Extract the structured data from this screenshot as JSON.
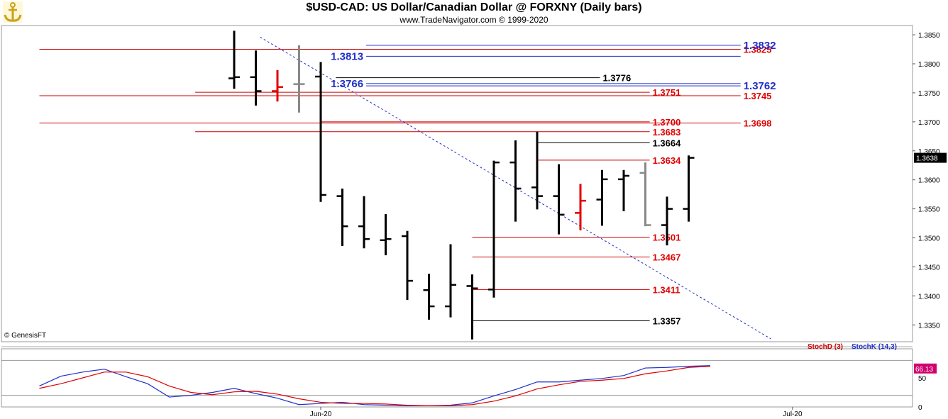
{
  "header": {
    "title": "$USD-CAD:  US Dollar/Canadian Dollar @ FORXNY  (Daily bars)",
    "subtitle": "www.TradeNavigator.com © 1999-2020",
    "copyright": "© GenesisFT"
  },
  "colors": {
    "up_bar": "#000000",
    "neutral_bar": "#888888",
    "down_bar": "#e00000",
    "resistance_line": "#cc0000",
    "trendline": "#1f2fc8",
    "stoch_d": "#cc0000",
    "stoch_k": "#1f2fc8",
    "label_red": "#e00000",
    "label_blue": "#1f2fc8"
  },
  "chart_data": [
    {
      "type": "ohlc",
      "title": "$USD-CAD:  US Dollar/Canadian Dollar @ FORXNY  (Daily bars)",
      "y_ticks": [
        "1.3350",
        "1.3400",
        "1.3450",
        "1.3500",
        "1.3550",
        "1.3600",
        "1.3650",
        "1.3700",
        "1.3750",
        "1.3800",
        "1.3850"
      ],
      "ylim": [
        1.3321,
        1.3866
      ],
      "x_ticks": [
        {
          "label": "Jun-20",
          "index": 4
        },
        {
          "label": "Jul-20",
          "index": 25.8
        }
      ],
      "last_price": "1.3638",
      "bars": [
        {
          "o": 1.3775,
          "h": 1.3857,
          "l": 1.3757,
          "c": 1.3777,
          "color": "black"
        },
        {
          "o": 1.3777,
          "h": 1.3823,
          "l": 1.3728,
          "c": 1.3753,
          "color": "black"
        },
        {
          "o": 1.3753,
          "h": 1.3789,
          "l": 1.3735,
          "c": 1.376,
          "color": "red"
        },
        {
          "o": 1.3765,
          "h": 1.3832,
          "l": 1.3716,
          "c": 1.3765,
          "color": "gray"
        },
        {
          "o": 1.3778,
          "h": 1.3803,
          "l": 1.3562,
          "c": 1.3574,
          "color": "black"
        },
        {
          "o": 1.3572,
          "h": 1.3585,
          "l": 1.3486,
          "c": 1.352,
          "color": "black"
        },
        {
          "o": 1.352,
          "h": 1.3572,
          "l": 1.3482,
          "c": 1.3498,
          "color": "black"
        },
        {
          "o": 1.3496,
          "h": 1.3541,
          "l": 1.347,
          "c": 1.3498,
          "color": "black"
        },
        {
          "o": 1.3503,
          "h": 1.3512,
          "l": 1.3393,
          "c": 1.3426,
          "color": "black"
        },
        {
          "o": 1.341,
          "h": 1.3438,
          "l": 1.3359,
          "c": 1.3382,
          "color": "black"
        },
        {
          "o": 1.3382,
          "h": 1.3489,
          "l": 1.3363,
          "c": 1.3419,
          "color": "black"
        },
        {
          "o": 1.3417,
          "h": 1.3437,
          "l": 1.3325,
          "c": 1.3413,
          "color": "black"
        },
        {
          "o": 1.3411,
          "h": 1.3633,
          "l": 1.3397,
          "c": 1.363,
          "color": "black"
        },
        {
          "o": 1.363,
          "h": 1.3668,
          "l": 1.3528,
          "c": 1.3585,
          "color": "black"
        },
        {
          "o": 1.3587,
          "h": 1.3683,
          "l": 1.3549,
          "c": 1.3572,
          "color": "black"
        },
        {
          "o": 1.3572,
          "h": 1.3627,
          "l": 1.3506,
          "c": 1.354,
          "color": "black"
        },
        {
          "o": 1.3543,
          "h": 1.3593,
          "l": 1.3513,
          "c": 1.3564,
          "color": "red"
        },
        {
          "o": 1.3566,
          "h": 1.3617,
          "l": 1.3521,
          "c": 1.3601,
          "color": "black"
        },
        {
          "o": 1.3601,
          "h": 1.3617,
          "l": 1.3546,
          "c": 1.3607,
          "color": "black"
        },
        {
          "o": 1.3612,
          "h": 1.363,
          "l": 1.352,
          "c": 1.3522,
          "color": "gray"
        },
        {
          "o": 1.3522,
          "h": 1.3571,
          "l": 1.3487,
          "c": 1.355,
          "color": "black"
        },
        {
          "o": 1.355,
          "h": 1.3642,
          "l": 1.3528,
          "c": 1.3638,
          "color": "black"
        }
      ],
      "levels": [
        {
          "value": 1.3825,
          "label": "1.3825",
          "color": "red",
          "from": -9,
          "to": 23.4
        },
        {
          "value": 1.3832,
          "label": "1.3832",
          "color": "blue",
          "from": 6.1,
          "to": 23.4
        },
        {
          "value": 1.3813,
          "label": "1.3813",
          "color": "blue",
          "from": 6.1,
          "to": 23.4
        },
        {
          "value": 1.3776,
          "label": "1.3776",
          "color": "black",
          "from": 4.7,
          "to": 16.9
        },
        {
          "value": 1.3766,
          "label": "1.3766",
          "color": "blue",
          "from": 6.1,
          "to": 23.4
        },
        {
          "value": 1.3762,
          "label": "1.3762",
          "color": "blue",
          "from": 6.1,
          "to": 23.4
        },
        {
          "value": 1.3751,
          "label": "1.3751",
          "color": "red",
          "from": -1.8,
          "to": 19.2
        },
        {
          "value": 1.3745,
          "label": "1.3745",
          "color": "red",
          "from": -9,
          "to": 23.4
        },
        {
          "value": 1.37,
          "label": "1.3700",
          "color": "red",
          "from": 4.0,
          "to": 19.2
        },
        {
          "value": 1.3698,
          "label": "1.3698",
          "color": "red",
          "from": -9,
          "to": 23.4
        },
        {
          "value": 1.3683,
          "label": "1.3683",
          "color": "red",
          "from": -1.8,
          "to": 19.2
        },
        {
          "value": 1.3664,
          "label": "1.3664",
          "color": "black",
          "from": 14.0,
          "to": 19.2
        },
        {
          "value": 1.3634,
          "label": "1.3634",
          "color": "red",
          "from": 14.0,
          "to": 19.2
        },
        {
          "value": 1.3501,
          "label": "1.3501",
          "color": "red",
          "from": 11.0,
          "to": 19.2
        },
        {
          "value": 1.3467,
          "label": "1.3467",
          "color": "red",
          "from": 11.0,
          "to": 19.2
        },
        {
          "value": 1.3411,
          "label": "1.3411",
          "color": "red",
          "from": 11.0,
          "to": 19.2
        },
        {
          "value": 1.3357,
          "label": "1.3357",
          "color": "black",
          "from": 11.0,
          "to": 19.2
        }
      ],
      "trendline": {
        "x1": 1.2,
        "y1": 1.3846,
        "x2": 24.8,
        "y2": 1.3326
      }
    },
    {
      "type": "line",
      "title": "",
      "legend": [
        "StochD (3)",
        "StochK (14,3)"
      ],
      "y_ticks": [
        "0",
        "50"
      ],
      "ylim": [
        0,
        100
      ],
      "last_value": "66.13",
      "series": [
        {
          "name": "StochK (14,3)",
          "color": "blue",
          "points": [
            [
              -9,
              36
            ],
            [
              -8,
              53
            ],
            [
              -7,
              60
            ],
            [
              -6,
              65
            ],
            [
              -5,
              52
            ],
            [
              -4,
              40
            ],
            [
              -3,
              17
            ],
            [
              -2,
              20
            ],
            [
              -1,
              25
            ],
            [
              0,
              32
            ],
            [
              1,
              23
            ],
            [
              2,
              15
            ],
            [
              3,
              4
            ],
            [
              4,
              6
            ],
            [
              5,
              8
            ],
            [
              6,
              4
            ],
            [
              7,
              3
            ],
            [
              8,
              2
            ],
            [
              9,
              2
            ],
            [
              10,
              3
            ],
            [
              11,
              7
            ],
            [
              12,
              19
            ],
            [
              13,
              30
            ],
            [
              14,
              43
            ],
            [
              15,
              43
            ],
            [
              16,
              46
            ],
            [
              17,
              49
            ],
            [
              18,
              54
            ],
            [
              19,
              67
            ],
            [
              20,
              68
            ],
            [
              21,
              70
            ],
            [
              22,
              71
            ]
          ]
        },
        {
          "name": "StochD (3)",
          "color": "red",
          "points": [
            [
              -9,
              32
            ],
            [
              -8,
              40
            ],
            [
              -7,
              50
            ],
            [
              -6,
              60
            ],
            [
              -5,
              60
            ],
            [
              -4,
              52
            ],
            [
              -3,
              36
            ],
            [
              -2,
              25
            ],
            [
              -1,
              21
            ],
            [
              0,
              26
            ],
            [
              1,
              27
            ],
            [
              2,
              22
            ],
            [
              3,
              14
            ],
            [
              4,
              8
            ],
            [
              5,
              6
            ],
            [
              6,
              6
            ],
            [
              7,
              5
            ],
            [
              8,
              3
            ],
            [
              9,
              2
            ],
            [
              10,
              2
            ],
            [
              11,
              4
            ],
            [
              12,
              10
            ],
            [
              13,
              19
            ],
            [
              14,
              31
            ],
            [
              15,
              38
            ],
            [
              16,
              44
            ],
            [
              17,
              46
            ],
            [
              18,
              49
            ],
            [
              19,
              57
            ],
            [
              20,
              62
            ],
            [
              21,
              68
            ],
            [
              22,
              70
            ]
          ]
        }
      ]
    }
  ]
}
